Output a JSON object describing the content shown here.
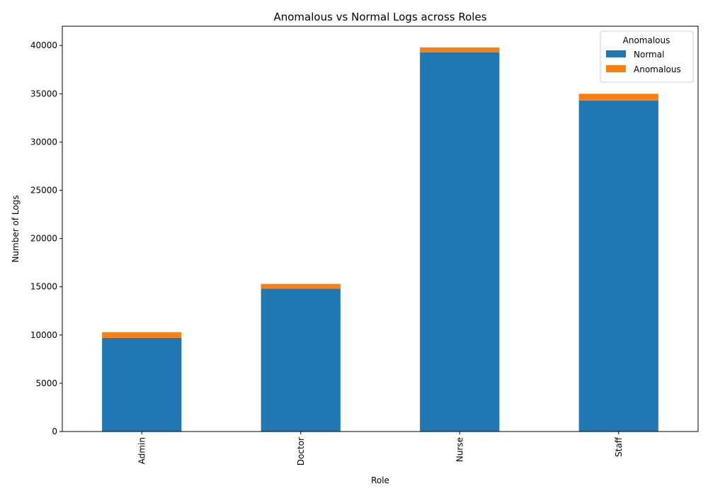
{
  "chart_data": {
    "type": "bar",
    "stacked": true,
    "title": "Anomalous vs Normal Logs across Roles",
    "xlabel": "Role",
    "ylabel": "Number of Logs",
    "categories": [
      "Admin",
      "Doctor",
      "Nurse",
      "Staff"
    ],
    "series": [
      {
        "name": "Normal",
        "values": [
          9700,
          14800,
          39300,
          34300
        ],
        "color": "#1f77b4"
      },
      {
        "name": "Anomalous",
        "values": [
          600,
          500,
          500,
          700
        ],
        "color": "#ff7f0e"
      }
    ],
    "ylim": [
      0,
      42000
    ],
    "yticks": [
      0,
      5000,
      10000,
      15000,
      20000,
      25000,
      30000,
      35000,
      40000
    ],
    "legend": {
      "title": "Anomalous",
      "placement": "top-right"
    },
    "grid": false
  }
}
